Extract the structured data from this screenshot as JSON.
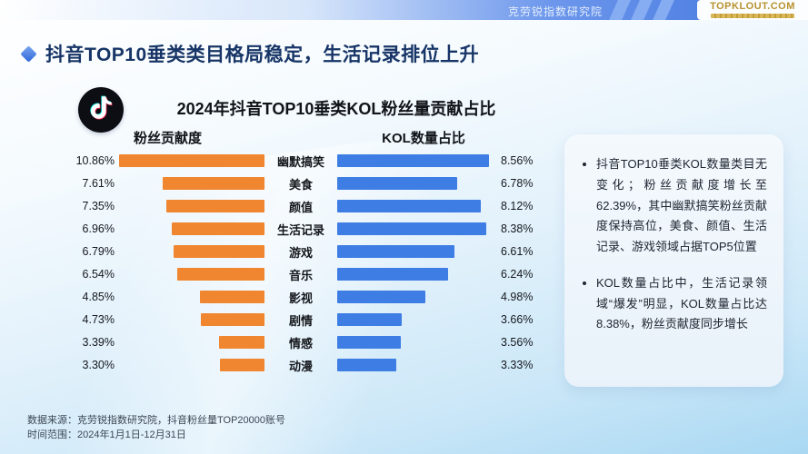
{
  "header": {
    "institute": "克劳锐指数研究院",
    "logo": "TOPKLOUT.COM"
  },
  "title": "抖音TOP10垂类类目格局稳定，生活记录排位上升",
  "chart_data": {
    "type": "bar",
    "title": "2024年抖音TOP10垂类KOL粉丝量贡献占比",
    "orientation": "horizontal-mirrored",
    "categories": [
      "幽默搞笑",
      "美食",
      "颜值",
      "生活记录",
      "游戏",
      "音乐",
      "影视",
      "剧情",
      "情感",
      "动漫"
    ],
    "series": [
      {
        "name": "粉丝贡献度",
        "values": [
          10.86,
          7.61,
          7.35,
          6.96,
          6.79,
          6.54,
          4.85,
          4.73,
          3.39,
          3.3
        ],
        "color": "#f0862f",
        "side": "left"
      },
      {
        "name": "KOL数量占比",
        "values": [
          8.56,
          6.78,
          8.12,
          8.38,
          6.61,
          6.24,
          4.98,
          3.66,
          3.56,
          3.33
        ],
        "color": "#3d7de4",
        "side": "right"
      }
    ],
    "value_suffix": "%"
  },
  "insights": [
    "抖音TOP10垂类KOL数量类目无变化；粉丝贡献度增长至62.39%，其中幽默搞笑粉丝贡献度保持高位，美食、颜值、生活记录、游戏领域占据TOP5位置",
    "KOL数量占比中，生活记录领域“爆发”明显，KOL数量占比达8.38%，粉丝贡献度同步增长"
  ],
  "footer": {
    "source": "数据来源：克劳锐指数研究院，抖音粉丝量TOP20000账号",
    "range": "时间范围：2024年1月1日-12月31日"
  },
  "colors": {
    "accent_blue": "#3d7de4",
    "accent_orange": "#f0862f",
    "title_navy": "#173567",
    "logo_gold": "#b8922e"
  }
}
